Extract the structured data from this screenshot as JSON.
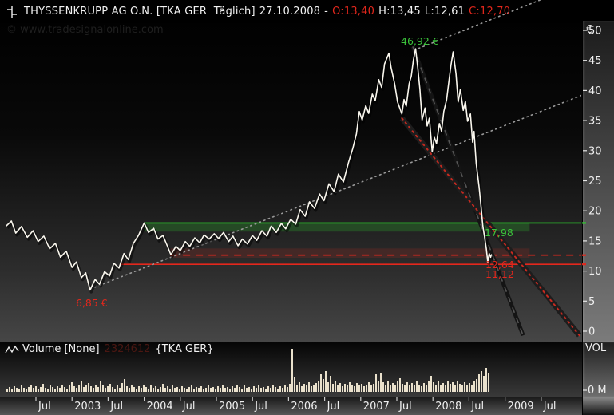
{
  "title_bar": {
    "symbol": "THYSSENKRUPP AG O.N. [TKA GER  Täglich]",
    "date": "27.10.2008",
    "dash": "-",
    "open": "O:13,40",
    "high": "H:13,45",
    "low": "L:12,61",
    "close": "C:12,70"
  },
  "watermark": "© www.tradesignalonline.com",
  "price_axis": {
    "currency": "€",
    "ticks": [
      50,
      45,
      40,
      35,
      30,
      25,
      20,
      15,
      10,
      5,
      0
    ]
  },
  "time_axis": {
    "labels": [
      "Jul",
      "2003",
      "Jul",
      "2004",
      "Jul",
      "2005",
      "Jul",
      "2006",
      "Jul",
      "2007",
      "Jul",
      "2008",
      "Jul",
      "2009",
      "Jul"
    ]
  },
  "volume_pane": {
    "label": "Volume [None]",
    "value": "2324612",
    "instrument": "{TKA GER}",
    "axis_label": "VOL",
    "zero_label": "0 M"
  },
  "colors": {
    "price_line": "#faf7ee",
    "volume_bar": "#eae1cc",
    "green": "#2ecc2e",
    "red": "#e3271c",
    "text": "#efefef"
  },
  "chart_data": {
    "type": "line",
    "title": "THYSSENKRUPP AG O.N.",
    "symbol": "TKA GER",
    "interval": "Täglich",
    "last_date": "27.10.2008",
    "ohlc": {
      "open": 13.4,
      "high": 13.45,
      "low": 12.61,
      "close": 12.7
    },
    "x_axis": {
      "unit": "decimal_year",
      "start": 2002.09,
      "end": 2010.06,
      "tick_labels": [
        "Jul",
        "2003",
        "Jul",
        "2004",
        "Jul",
        "2005",
        "Jul",
        "2006",
        "Jul",
        "2007",
        "Jul",
        "2008",
        "Jul",
        "2009",
        "Jul"
      ]
    },
    "y_axis": {
      "unit": "EUR",
      "min": 0,
      "max": 50,
      "ticks": [
        50,
        45,
        40,
        35,
        30,
        25,
        20,
        15,
        10,
        5,
        0
      ]
    },
    "annotations": {
      "peak": "46,92 €",
      "low": "6,85 €"
    },
    "levels": [
      {
        "name": "resistance",
        "label": "17,98",
        "value": 17.98,
        "color": "#2ecc2e",
        "style": "solid",
        "from_t": 2004.0,
        "band": {
          "top_p": 17.98,
          "bottom_p": 16.55,
          "to_t": 2009.34,
          "fill": "rgba(45,170,45,0.30)"
        }
      },
      {
        "name": "warning",
        "label": "12,64",
        "value": 12.64,
        "color": "#e3271c",
        "style": "dashed",
        "from_t": 2004.36,
        "band": {
          "top_p": 13.75,
          "bottom_p": 12.2,
          "to_t": 2009.34,
          "fill": "rgba(170,40,30,0.22)"
        }
      },
      {
        "name": "support",
        "label": "11,12",
        "value": 11.12,
        "color": "#e3271c",
        "style": "solid",
        "from_t": 2003.68
      }
    ],
    "trendlines": [
      {
        "name": "rising-channel-lower",
        "style": "dotted-light",
        "pts": [
          [
            2003.25,
            7.0
          ],
          [
            2010.06,
            39.2
          ]
        ]
      },
      {
        "name": "rising-channel-upper",
        "style": "dotted-light",
        "pts": [
          [
            2007.74,
            46.7
          ],
          [
            2009.52,
            55.2
          ]
        ]
      },
      {
        "name": "crash-dashed",
        "style": "dashed-dark",
        "pts": [
          [
            2007.72,
            47.3
          ],
          [
            2009.25,
            -0.7
          ]
        ]
      },
      {
        "name": "crash-red-dotted",
        "style": "red-dotted-dark",
        "pts": [
          [
            2007.57,
            35.4
          ],
          [
            2010.03,
            -0.7
          ]
        ]
      }
    ],
    "price_series": [
      [
        2002.09,
        17.5
      ],
      [
        2002.16,
        18.3
      ],
      [
        2002.22,
        16.3
      ],
      [
        2002.3,
        17.4
      ],
      [
        2002.38,
        15.6
      ],
      [
        2002.46,
        16.7
      ],
      [
        2002.53,
        14.9
      ],
      [
        2002.61,
        15.8
      ],
      [
        2002.69,
        13.7
      ],
      [
        2002.77,
        14.6
      ],
      [
        2002.84,
        12.3
      ],
      [
        2002.92,
        13.3
      ],
      [
        2003.0,
        10.6
      ],
      [
        2003.06,
        11.5
      ],
      [
        2003.13,
        8.9
      ],
      [
        2003.19,
        9.7
      ],
      [
        2003.25,
        6.85
      ],
      [
        2003.32,
        8.6
      ],
      [
        2003.38,
        7.8
      ],
      [
        2003.45,
        9.9
      ],
      [
        2003.52,
        9.2
      ],
      [
        2003.58,
        11.3
      ],
      [
        2003.65,
        10.5
      ],
      [
        2003.72,
        12.9
      ],
      [
        2003.78,
        11.9
      ],
      [
        2003.85,
        14.6
      ],
      [
        2003.92,
        15.9
      ],
      [
        2004.0,
        17.98
      ],
      [
        2004.06,
        16.4
      ],
      [
        2004.13,
        17.1
      ],
      [
        2004.19,
        15.3
      ],
      [
        2004.26,
        15.9
      ],
      [
        2004.33,
        13.9
      ],
      [
        2004.37,
        12.7
      ],
      [
        2004.44,
        14.1
      ],
      [
        2004.5,
        13.4
      ],
      [
        2004.57,
        14.9
      ],
      [
        2004.63,
        14.1
      ],
      [
        2004.7,
        15.5
      ],
      [
        2004.77,
        14.7
      ],
      [
        2004.83,
        16.0
      ],
      [
        2004.9,
        15.3
      ],
      [
        2004.97,
        16.2
      ],
      [
        2005.03,
        15.4
      ],
      [
        2005.1,
        16.4
      ],
      [
        2005.17,
        14.9
      ],
      [
        2005.23,
        15.8
      ],
      [
        2005.3,
        14.2
      ],
      [
        2005.36,
        15.3
      ],
      [
        2005.43,
        14.5
      ],
      [
        2005.5,
        15.9
      ],
      [
        2005.56,
        15.1
      ],
      [
        2005.63,
        16.7
      ],
      [
        2005.7,
        15.8
      ],
      [
        2005.76,
        17.5
      ],
      [
        2005.83,
        16.4
      ],
      [
        2005.9,
        17.9
      ],
      [
        2005.96,
        17.0
      ],
      [
        2006.03,
        18.6
      ],
      [
        2006.1,
        17.8
      ],
      [
        2006.16,
        20.2
      ],
      [
        2006.23,
        19.1
      ],
      [
        2006.29,
        21.5
      ],
      [
        2006.36,
        20.4
      ],
      [
        2006.43,
        22.8
      ],
      [
        2006.49,
        21.7
      ],
      [
        2006.56,
        24.5
      ],
      [
        2006.63,
        23.2
      ],
      [
        2006.69,
        26.1
      ],
      [
        2006.76,
        24.8
      ],
      [
        2006.83,
        28.0
      ],
      [
        2006.89,
        30.4
      ],
      [
        2006.94,
        32.8
      ],
      [
        2006.98,
        36.5
      ],
      [
        2007.02,
        35.1
      ],
      [
        2007.07,
        37.5
      ],
      [
        2007.11,
        36.2
      ],
      [
        2007.16,
        39.4
      ],
      [
        2007.2,
        38.3
      ],
      [
        2007.25,
        41.8
      ],
      [
        2007.29,
        40.5
      ],
      [
        2007.33,
        44.4
      ],
      [
        2007.39,
        46.2
      ],
      [
        2007.42,
        43.8
      ],
      [
        2007.47,
        41.1
      ],
      [
        2007.51,
        38.1
      ],
      [
        2007.57,
        36.1
      ],
      [
        2007.6,
        38.5
      ],
      [
        2007.63,
        37.4
      ],
      [
        2007.67,
        41.1
      ],
      [
        2007.7,
        42.4
      ],
      [
        2007.73,
        45.1
      ],
      [
        2007.76,
        46.92
      ],
      [
        2007.79,
        43.8
      ],
      [
        2007.82,
        40.2
      ],
      [
        2007.85,
        35.1
      ],
      [
        2007.89,
        37.1
      ],
      [
        2007.92,
        34.1
      ],
      [
        2007.95,
        35.4
      ],
      [
        2007.99,
        29.8
      ],
      [
        2008.02,
        32.2
      ],
      [
        2008.05,
        31.2
      ],
      [
        2008.09,
        34.5
      ],
      [
        2008.12,
        33.2
      ],
      [
        2008.15,
        36.5
      ],
      [
        2008.19,
        38.5
      ],
      [
        2008.22,
        41.4
      ],
      [
        2008.25,
        44.2
      ],
      [
        2008.28,
        46.4
      ],
      [
        2008.32,
        42.8
      ],
      [
        2008.35,
        38.1
      ],
      [
        2008.38,
        40.2
      ],
      [
        2008.42,
        36.7
      ],
      [
        2008.45,
        38.2
      ],
      [
        2008.48,
        34.9
      ],
      [
        2008.52,
        36.1
      ],
      [
        2008.55,
        31.4
      ],
      [
        2008.57,
        33.2
      ],
      [
        2008.6,
        27.9
      ],
      [
        2008.64,
        23.9
      ],
      [
        2008.67,
        20.3
      ],
      [
        2008.69,
        17.6
      ],
      [
        2008.72,
        15.3
      ],
      [
        2008.74,
        13.7
      ],
      [
        2008.76,
        11.5
      ],
      [
        2008.78,
        12.9
      ],
      [
        2008.8,
        12.3
      ],
      [
        2008.81,
        12.7
      ]
    ],
    "volume_bars": {
      "note": "relative heights, last bar = 27.10.2008",
      "values": [
        4,
        6,
        3,
        7,
        5,
        4,
        8,
        5,
        3,
        6,
        9,
        5,
        7,
        4,
        6,
        10,
        5,
        4,
        8,
        6,
        4,
        7,
        5,
        9,
        6,
        4,
        8,
        12,
        7,
        5,
        9,
        14,
        6,
        8,
        11,
        7,
        5,
        9,
        6,
        13,
        8,
        5,
        7,
        10,
        6,
        4,
        8,
        5,
        11,
        16,
        7,
        5,
        9,
        6,
        4,
        7,
        5,
        8,
        6,
        4,
        9,
        5,
        7,
        4,
        6,
        10,
        5,
        7,
        4,
        8,
        5,
        6,
        4,
        7,
        5,
        3,
        6,
        8,
        4,
        6,
        5,
        7,
        4,
        5,
        8,
        5,
        6,
        4,
        7,
        5,
        9,
        5,
        6,
        4,
        7,
        5,
        8,
        6,
        4,
        9,
        5,
        6,
        4,
        7,
        5,
        8,
        5,
        6,
        4,
        7,
        5,
        9,
        6,
        4,
        7,
        5,
        8,
        6,
        10,
        54,
        18,
        9,
        12,
        7,
        10,
        8,
        12,
        7,
        9,
        11,
        14,
        22,
        16,
        26,
        12,
        20,
        10,
        14,
        8,
        11,
        7,
        10,
        8,
        12,
        9,
        7,
        11,
        8,
        10,
        7,
        9,
        12,
        8,
        10,
        22,
        14,
        24,
        12,
        9,
        13,
        8,
        11,
        9,
        13,
        17,
        10,
        8,
        12,
        9,
        11,
        8,
        13,
        9,
        7,
        11,
        8,
        14,
        20,
        12,
        9,
        13,
        8,
        11,
        9,
        14,
        10,
        12,
        9,
        13,
        10,
        8,
        12,
        9,
        11,
        8,
        13,
        16,
        22,
        26,
        20,
        30,
        24
      ]
    }
  }
}
